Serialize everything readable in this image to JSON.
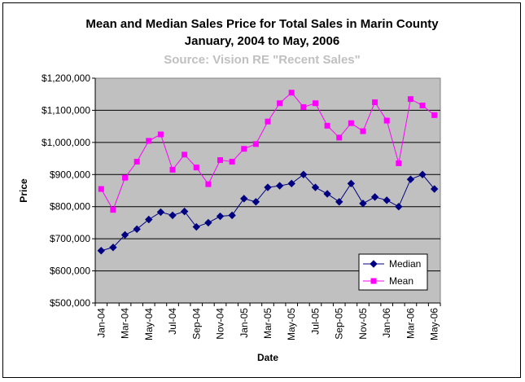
{
  "chart_data": {
    "type": "line",
    "title_line1": "Mean and Median Sales Price for Total Sales in Marin County",
    "title_line2": "January, 2004 to May, 2006",
    "subtitle": "Source:  Vision RE \"Recent Sales\"",
    "xlabel": "Date",
    "ylabel": "Price",
    "ylim": [
      500000,
      1200000
    ],
    "y_ticks": [
      "$500,000",
      "$600,000",
      "$700,000",
      "$800,000",
      "$900,000",
      "$1,000,000",
      "$1,100,000",
      "$1,200,000"
    ],
    "x_tick_labels": [
      "Jan-04",
      "Mar-04",
      "May-04",
      "Jul-04",
      "Sep-04",
      "Nov-04",
      "Jan-05",
      "Mar-05",
      "May-05",
      "Jul-05",
      "Sep-05",
      "Nov-05",
      "Jan-06",
      "Mar-06",
      "May-06"
    ],
    "categories": [
      "Jan-04",
      "Feb-04",
      "Mar-04",
      "Apr-04",
      "May-04",
      "Jun-04",
      "Jul-04",
      "Aug-04",
      "Sep-04",
      "Oct-04",
      "Nov-04",
      "Dec-04",
      "Jan-05",
      "Feb-05",
      "Mar-05",
      "Apr-05",
      "May-05",
      "Jun-05",
      "Jul-05",
      "Aug-05",
      "Sep-05",
      "Oct-05",
      "Nov-05",
      "Dec-05",
      "Jan-06",
      "Feb-06",
      "Mar-06",
      "Apr-06",
      "May-06"
    ],
    "grid": true,
    "legend_position": "bottom-right",
    "plot_background": "#c0c0c0",
    "series": [
      {
        "name": "Median",
        "color": "#000080",
        "marker": "diamond",
        "values": [
          663000,
          673000,
          712000,
          730000,
          760000,
          783000,
          773000,
          785000,
          737000,
          750000,
          770000,
          773000,
          825000,
          815000,
          860000,
          865000,
          872000,
          900000,
          860000,
          840000,
          815000,
          872000,
          810000,
          830000,
          820000,
          800000,
          885000,
          900000,
          855000
        ]
      },
      {
        "name": "Mean",
        "color": "#ff00ff",
        "marker": "square",
        "values": [
          855000,
          790000,
          890000,
          940000,
          1005000,
          1025000,
          915000,
          962000,
          922000,
          870000,
          945000,
          940000,
          980000,
          995000,
          1065000,
          1122000,
          1155000,
          1110000,
          1122000,
          1052000,
          1015000,
          1060000,
          1035000,
          1125000,
          1068000,
          935000,
          1135000,
          1115000,
          1085000
        ]
      }
    ]
  }
}
